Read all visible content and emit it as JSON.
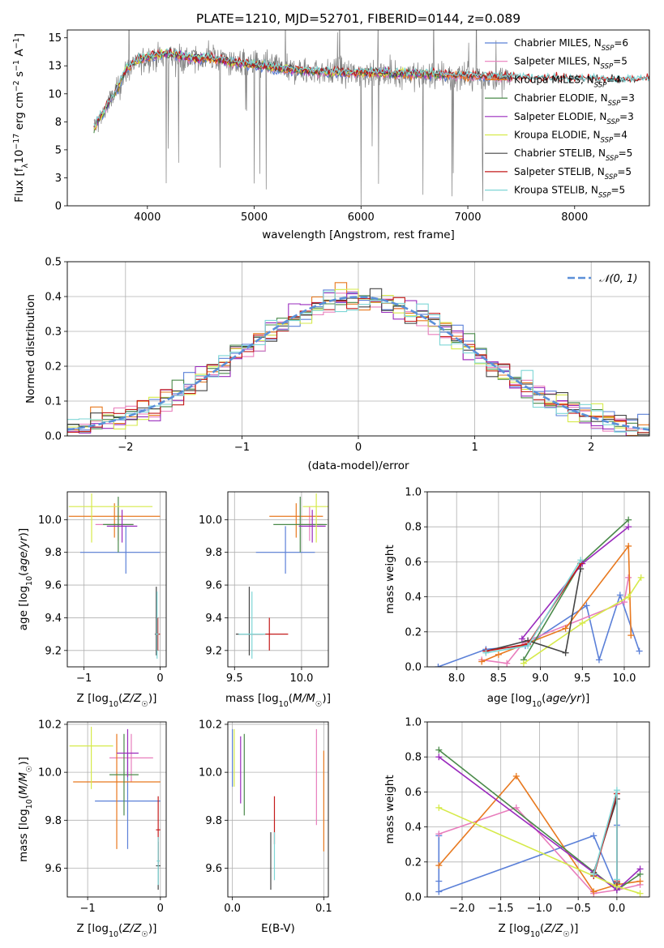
{
  "figure": {
    "title": "PLATE=1210, MJD=52701, FIBERID=0144, z=0.089"
  },
  "colors": {
    "Chabrier MILES": "#5b80d8",
    "Salpeter MILES": "#e87dbc",
    "Kroupa MILES": "#e8791f",
    "Chabrier ELODIE": "#4a8a4a",
    "Salpeter ELODIE": "#9a2bbd",
    "Kroupa ELODIE": "#d6ea4a",
    "Chabrier STELIB": "#444444",
    "Salpeter STELIB": "#c41a1a",
    "Kroupa STELIB": "#7ed6d6",
    "data": "#808080"
  },
  "legend_entries": [
    {
      "name": "Chabrier MILES",
      "nssp": "6"
    },
    {
      "name": "Salpeter MILES",
      "nssp": "5"
    },
    {
      "name": "Kroupa MILES",
      "nssp": "4"
    },
    {
      "name": "Chabrier ELODIE",
      "nssp": "3"
    },
    {
      "name": "Salpeter ELODIE",
      "nssp": "3"
    },
    {
      "name": "Kroupa ELODIE",
      "nssp": "4"
    },
    {
      "name": "Chabrier STELIB",
      "nssp": "5"
    },
    {
      "name": "Salpeter STELIB",
      "nssp": "5"
    },
    {
      "name": "Kroupa STELIB",
      "nssp": "5"
    }
  ],
  "chart_data": [
    {
      "id": "spectrum",
      "type": "line",
      "xlabel": "wavelength [Angstrom, rest frame]",
      "ylabel": "Flux [f_λ 10^-17 erg cm^-2 s^-1 A^-1]",
      "xlim": [
        3250,
        8700
      ],
      "ylim": [
        0,
        15.7
      ],
      "xticks": [
        4000,
        5000,
        6000,
        7000,
        8000
      ],
      "yticks": [
        0.0,
        2.5,
        5.0,
        7.5,
        10.0,
        12.5,
        15.0
      ],
      "legend_position": "upper right",
      "data_envelope": {
        "x": [
          3500,
          3600,
          3700,
          3800,
          3900,
          4000,
          4200,
          4400,
          4600,
          4800,
          5000,
          5200,
          5500,
          6000,
          6500,
          7000,
          7400
        ],
        "y": [
          7.0,
          8.5,
          10.0,
          12.0,
          12.8,
          13.2,
          13.5,
          13.0,
          13.2,
          12.8,
          12.6,
          12.3,
          12.0,
          11.8,
          11.7,
          11.5,
          11.2
        ]
      },
      "model_envelope": {
        "x": [
          3500,
          3600,
          3700,
          3800,
          3900,
          4000,
          4200,
          4400,
          4600,
          4800,
          5000,
          5200,
          5500,
          6000,
          6500,
          7000,
          7500,
          8000,
          8500,
          8700
        ],
        "y": [
          7.0,
          8.6,
          10.2,
          12.2,
          13.0,
          13.3,
          13.6,
          13.2,
          13.2,
          12.8,
          12.6,
          12.3,
          12.0,
          11.9,
          11.8,
          11.6,
          11.4,
          11.3,
          11.2,
          11.2
        ]
      },
      "model_ends": {
        "Chabrier MILES": 7400,
        "Salpeter MILES": 7400,
        "Kroupa MILES": 7400,
        "Chabrier ELODIE": 6800,
        "Salpeter ELODIE": 6800,
        "Kroupa ELODIE": 6800,
        "Chabrier STELIB": 8700,
        "Salpeter STELIB": 8700,
        "Kroupa STELIB": 8700
      }
    },
    {
      "id": "residuals",
      "type": "line",
      "xlabel": "(data-model)/error",
      "ylabel": "Normed distribution",
      "xlim": [
        -2.5,
        2.5
      ],
      "ylim": [
        0,
        0.5
      ],
      "xticks": [
        -2,
        -1,
        0,
        1,
        2
      ],
      "yticks": [
        0.0,
        0.1,
        0.2,
        0.3,
        0.4,
        0.5
      ],
      "grid": true,
      "legend_position": "upper right",
      "reference_curve": {
        "name": "𝒩(0, 1)",
        "mean": 0,
        "sigma": 1
      },
      "bin_width": 0.1
    },
    {
      "id": "age-vs-Z",
      "type": "scatter",
      "xlabel": "Z [log10(Z/Z☉)]",
      "ylabel": "age  [log10(age/yr)]",
      "xlim": [
        -1.22,
        0.08
      ],
      "ylim": [
        9.1,
        10.17
      ],
      "xticks": [
        -1,
        0
      ],
      "yticks": [
        9.2,
        9.4,
        9.6,
        9.8,
        10.0
      ],
      "grid": true,
      "points": [
        {
          "model": "Chabrier MILES",
          "x": -0.45,
          "y": 9.8,
          "xerr": [
            0.6,
            0.45
          ],
          "yerr": [
            0.13,
            0.16
          ]
        },
        {
          "model": "Salpeter MILES",
          "x": -0.55,
          "y": 9.97,
          "xerr": [
            0.3,
            0.2
          ],
          "yerr": [
            0.1,
            0.11
          ]
        },
        {
          "model": "Kroupa MILES",
          "x": -0.6,
          "y": 10.02,
          "xerr": [
            0.6,
            0.6
          ],
          "yerr": [
            0.13,
            0.08
          ]
        },
        {
          "model": "Chabrier ELODIE",
          "x": -0.55,
          "y": 9.97,
          "xerr": [
            0.2,
            0.2
          ],
          "yerr": [
            0.17,
            0.17
          ]
        },
        {
          "model": "Salpeter ELODIE",
          "x": -0.5,
          "y": 9.96,
          "xerr": [
            0.2,
            0.2
          ],
          "yerr": [
            0.1,
            0.1
          ]
        },
        {
          "model": "Kroupa ELODIE",
          "x": -0.9,
          "y": 10.08,
          "xerr": [
            0.3,
            0.8
          ],
          "yerr": [
            0.22,
            0.08
          ]
        },
        {
          "model": "Chabrier STELIB",
          "x": -0.05,
          "y": 9.3,
          "xerr": [
            0.02,
            0.02
          ],
          "yerr": [
            0.13,
            0.29
          ]
        },
        {
          "model": "Salpeter STELIB",
          "x": -0.03,
          "y": 9.3,
          "xerr": [
            0.03,
            0.03
          ],
          "yerr": [
            0.1,
            0.1
          ]
        },
        {
          "model": "Kroupa STELIB",
          "x": -0.04,
          "y": 9.3,
          "xerr": [
            0.02,
            0.02
          ],
          "yerr": [
            0.15,
            0.26
          ]
        }
      ]
    },
    {
      "id": "age-vs-mass",
      "type": "scatter",
      "xlabel": "mass [log10(M/M☉)]",
      "ylabel": "",
      "xlim": [
        9.45,
        10.2
      ],
      "ylim": [
        9.1,
        10.17
      ],
      "xticks": [
        9.5,
        10.0
      ],
      "yticks": [
        9.2,
        9.4,
        9.6,
        9.8,
        10.0
      ],
      "grid": true,
      "points": [
        {
          "model": "Chabrier MILES",
          "x": 9.88,
          "y": 9.8,
          "xerr": [
            0.22,
            0.22
          ],
          "yerr": [
            0.13,
            0.16
          ]
        },
        {
          "model": "Salpeter MILES",
          "x": 10.06,
          "y": 9.97,
          "xerr": [
            0.1,
            0.1
          ],
          "yerr": [
            0.1,
            0.11
          ]
        },
        {
          "model": "Kroupa MILES",
          "x": 9.96,
          "y": 10.02,
          "xerr": [
            0.2,
            0.2
          ],
          "yerr": [
            0.13,
            0.08
          ]
        },
        {
          "model": "Chabrier ELODIE",
          "x": 9.99,
          "y": 9.97,
          "xerr": [
            0.2,
            0.2
          ],
          "yerr": [
            0.17,
            0.17
          ]
        },
        {
          "model": "Salpeter ELODIE",
          "x": 10.08,
          "y": 9.96,
          "xerr": [
            0.1,
            0.1
          ],
          "yerr": [
            0.1,
            0.1
          ]
        },
        {
          "model": "Kroupa ELODIE",
          "x": 10.11,
          "y": 10.08,
          "xerr": [
            0.1,
            0.1
          ],
          "yerr": [
            0.22,
            0.08
          ]
        },
        {
          "model": "Chabrier STELIB",
          "x": 9.61,
          "y": 9.3,
          "xerr": [
            0.1,
            0.1
          ],
          "yerr": [
            0.13,
            0.29
          ]
        },
        {
          "model": "Salpeter STELIB",
          "x": 9.76,
          "y": 9.3,
          "xerr": [
            0.14,
            0.14
          ],
          "yerr": [
            0.1,
            0.1
          ]
        },
        {
          "model": "Kroupa STELIB",
          "x": 9.63,
          "y": 9.3,
          "xerr": [
            0.1,
            0.1
          ],
          "yerr": [
            0.15,
            0.26
          ]
        }
      ]
    },
    {
      "id": "mass-weight-vs-age",
      "type": "line",
      "xlabel": "age  [log10(age/yr)]",
      "ylabel": "mass weight",
      "xlim": [
        7.65,
        10.3
      ],
      "ylim": [
        0,
        1.0
      ],
      "xticks": [
        8.0,
        8.5,
        9.0,
        9.5,
        10.0
      ],
      "yticks": [
        0.0,
        0.2,
        0.4,
        0.6,
        0.8,
        1.0
      ],
      "grid": true,
      "series": [
        {
          "model": "Chabrier MILES",
          "x": [
            7.78,
            8.35,
            8.82,
            9.55,
            9.7,
            9.95,
            10.18
          ],
          "y": [
            0.0,
            0.1,
            0.12,
            0.35,
            0.04,
            0.41,
            0.09
          ]
        },
        {
          "model": "Salpeter MILES",
          "x": [
            8.3,
            8.6,
            8.8,
            10.0,
            10.05
          ],
          "y": [
            0.04,
            0.02,
            0.14,
            0.37,
            0.51
          ]
        },
        {
          "model": "Kroupa MILES",
          "x": [
            8.3,
            8.5,
            9.3,
            10.05,
            10.08
          ],
          "y": [
            0.03,
            0.07,
            0.22,
            0.69,
            0.18
          ]
        },
        {
          "model": "Chabrier ELODIE",
          "x": [
            8.8,
            9.48,
            10.05
          ],
          "y": [
            0.04,
            0.59,
            0.84
          ]
        },
        {
          "model": "Salpeter ELODIE",
          "x": [
            8.78,
            9.5,
            10.05
          ],
          "y": [
            0.16,
            0.59,
            0.8
          ]
        },
        {
          "model": "Kroupa ELODIE",
          "x": [
            8.8,
            9.5,
            10.05,
            10.2
          ],
          "y": [
            0.02,
            0.25,
            0.4,
            0.51
          ]
        },
        {
          "model": "Chabrier STELIB",
          "x": [
            8.35,
            8.85,
            9.3,
            9.48
          ],
          "y": [
            0.09,
            0.15,
            0.08,
            0.56
          ]
        },
        {
          "model": "Salpeter STELIB",
          "x": [
            8.35,
            8.85,
            9.48
          ],
          "y": [
            0.09,
            0.13,
            0.59
          ]
        },
        {
          "model": "Kroupa STELIB",
          "x": [
            8.35,
            8.85,
            9.48
          ],
          "y": [
            0.08,
            0.12,
            0.61
          ]
        }
      ]
    },
    {
      "id": "mass-vs-Z",
      "type": "scatter",
      "xlabel": "Z [log10(Z/Z☉)]",
      "ylabel": "mass [log10(M/M☉)]",
      "xlim": [
        -1.28,
        0.08
      ],
      "ylim": [
        9.48,
        10.21
      ],
      "xticks": [
        -1,
        0
      ],
      "yticks": [
        9.6,
        9.8,
        10.0,
        10.2
      ],
      "grid": true,
      "points": [
        {
          "model": "Chabrier MILES",
          "x": -0.45,
          "y": 9.88,
          "xerr": [
            0.45,
            0.45
          ],
          "yerr": [
            0.2,
            0.2
          ]
        },
        {
          "model": "Salpeter MILES",
          "x": -0.4,
          "y": 10.06,
          "xerr": [
            0.3,
            0.3
          ],
          "yerr": [
            0.1,
            0.1
          ]
        },
        {
          "model": "Kroupa MILES",
          "x": -0.6,
          "y": 9.96,
          "xerr": [
            0.6,
            0.6
          ],
          "yerr": [
            0.28,
            0.2
          ]
        },
        {
          "model": "Chabrier ELODIE",
          "x": -0.5,
          "y": 9.99,
          "xerr": [
            0.2,
            0.2
          ],
          "yerr": [
            0.17,
            0.17
          ]
        },
        {
          "model": "Salpeter ELODIE",
          "x": -0.45,
          "y": 10.08,
          "xerr": [
            0.15,
            0.15
          ],
          "yerr": [
            0.1,
            0.1
          ]
        },
        {
          "model": "Kroupa ELODIE",
          "x": -0.95,
          "y": 10.11,
          "xerr": [
            0.3,
            0.3
          ],
          "yerr": [
            0.18,
            0.08
          ]
        },
        {
          "model": "Chabrier STELIB",
          "x": -0.03,
          "y": 9.61,
          "xerr": [
            0.03,
            0.03
          ],
          "yerr": [
            0.1,
            0.1
          ]
        },
        {
          "model": "Salpeter STELIB",
          "x": -0.03,
          "y": 9.76,
          "xerr": [
            0.03,
            0.03
          ],
          "yerr": [
            0.14,
            0.14
          ]
        },
        {
          "model": "Kroupa STELIB",
          "x": -0.03,
          "y": 9.63,
          "xerr": [
            0.02,
            0.02
          ],
          "yerr": [
            0.1,
            0.1
          ]
        }
      ]
    },
    {
      "id": "mass-vs-EBV",
      "type": "scatter",
      "xlabel": "E(B-V)",
      "ylabel": "",
      "xlim": [
        -0.005,
        0.105
      ],
      "ylim": [
        9.48,
        10.21
      ],
      "xticks": [
        0.0,
        0.1
      ],
      "yticks": [
        9.6,
        9.8,
        10.0,
        10.2
      ],
      "grid": true,
      "points": [
        {
          "model": "Chabrier MILES",
          "x": 0.0,
          "y": 10.06,
          "xerr": [
            0,
            0
          ],
          "yerr": [
            0.12,
            0.12
          ]
        },
        {
          "model": "Salpeter MILES",
          "x": 0.092,
          "y": 9.98,
          "xerr": [
            0,
            0
          ],
          "yerr": [
            0.2,
            0.2
          ]
        },
        {
          "model": "Kroupa MILES",
          "x": 0.1,
          "y": 9.88,
          "xerr": [
            0,
            0
          ],
          "yerr": [
            0.21,
            0.21
          ]
        },
        {
          "model": "Chabrier ELODIE",
          "x": 0.013,
          "y": 9.99,
          "xerr": [
            0,
            0
          ],
          "yerr": [
            0.17,
            0.17
          ]
        },
        {
          "model": "Salpeter ELODIE",
          "x": 0.009,
          "y": 10.01,
          "xerr": [
            0,
            0
          ],
          "yerr": [
            0.14,
            0.14
          ]
        },
        {
          "model": "Kroupa ELODIE",
          "x": 0.002,
          "y": 10.06,
          "xerr": [
            0,
            0
          ],
          "yerr": [
            0.12,
            0.12
          ]
        },
        {
          "model": "Chabrier STELIB",
          "x": 0.042,
          "y": 9.63,
          "xerr": [
            0,
            0
          ],
          "yerr": [
            0.12,
            0.12
          ]
        },
        {
          "model": "Salpeter STELIB",
          "x": 0.046,
          "y": 9.8,
          "xerr": [
            0,
            0
          ],
          "yerr": [
            0.1,
            0.1
          ]
        },
        {
          "model": "Kroupa STELIB",
          "x": 0.046,
          "y": 9.65,
          "xerr": [
            0,
            0
          ],
          "yerr": [
            0.1,
            0.1
          ]
        }
      ]
    },
    {
      "id": "mass-weight-vs-Z",
      "type": "line",
      "xlabel": "Z [log10(Z/Z☉)]",
      "ylabel": "mass weight",
      "xlim": [
        -2.45,
        0.42
      ],
      "ylim": [
        0,
        1.0
      ],
      "xticks": [
        -2.0,
        -1.5,
        -1.0,
        -0.5,
        0.0
      ],
      "yticks": [
        0.0,
        0.2,
        0.4,
        0.6,
        0.8,
        1.0
      ],
      "grid": true,
      "series": [
        {
          "model": "Chabrier MILES",
          "x": [
            -2.3,
            -2.3,
            -2.3,
            -0.3,
            0.0,
            0.0,
            0.0
          ],
          "y": [
            0.09,
            0.35,
            0.03,
            0.35,
            0.04,
            0.41,
            0.09
          ]
        },
        {
          "model": "Salpeter MILES",
          "x": [
            -2.3,
            -1.3,
            -0.3,
            0.0,
            0.3
          ],
          "y": [
            0.36,
            0.51,
            0.02,
            0.04,
            0.07
          ]
        },
        {
          "model": "Kroupa MILES",
          "x": [
            -2.3,
            -1.3,
            -0.3,
            0.0,
            0.3
          ],
          "y": [
            0.18,
            0.69,
            0.03,
            0.07,
            0.09
          ]
        },
        {
          "model": "Chabrier ELODIE",
          "x": [
            -2.3,
            0.0,
            0.3
          ],
          "y": [
            0.84,
            0.04,
            0.13
          ]
        },
        {
          "model": "Salpeter ELODIE",
          "x": [
            -2.3,
            0.0,
            0.3
          ],
          "y": [
            0.8,
            0.04,
            0.16
          ]
        },
        {
          "model": "Kroupa ELODIE",
          "x": [
            -2.3,
            -0.3,
            0.0,
            0.3
          ],
          "y": [
            0.51,
            0.12,
            0.06,
            0.02
          ]
        },
        {
          "model": "Chabrier STELIB",
          "x": [
            -0.3,
            0.0,
            0.0
          ],
          "y": [
            0.14,
            0.56,
            0.08
          ]
        },
        {
          "model": "Salpeter STELIB",
          "x": [
            -0.3,
            0.0,
            0.0
          ],
          "y": [
            0.12,
            0.59,
            0.09
          ]
        },
        {
          "model": "Kroupa STELIB",
          "x": [
            -0.3,
            0.0,
            0.0
          ],
          "y": [
            0.13,
            0.61,
            0.1
          ]
        }
      ]
    }
  ]
}
